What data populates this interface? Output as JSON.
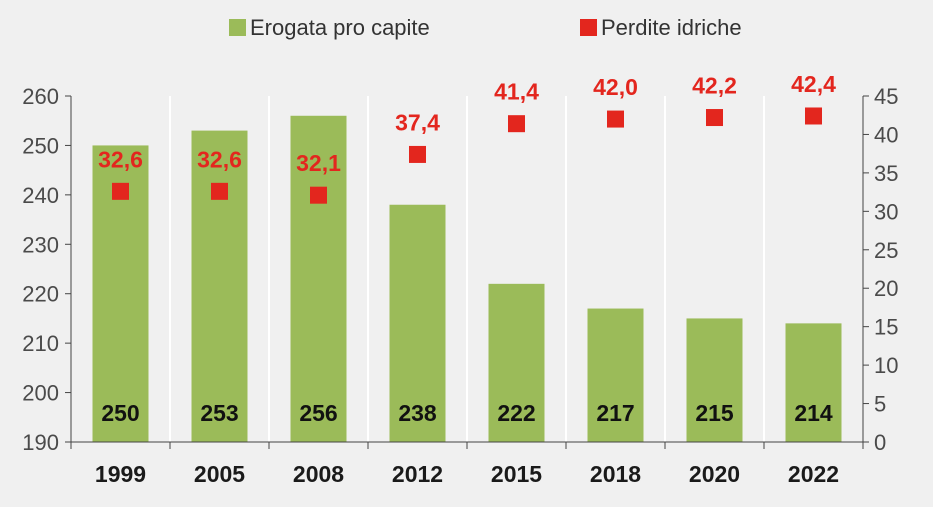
{
  "chart_data": {
    "type": "bar",
    "categories": [
      "1999",
      "2005",
      "2008",
      "2012",
      "2015",
      "2018",
      "2020",
      "2022"
    ],
    "series": [
      {
        "name": "Erogata pro capite",
        "kind": "bar",
        "axis": "left",
        "color": "#9bbb59",
        "values": [
          250,
          253,
          256,
          238,
          222,
          217,
          215,
          214
        ],
        "labels": [
          "250",
          "253",
          "256",
          "238",
          "222",
          "217",
          "215",
          "214"
        ]
      },
      {
        "name": "Perdite idriche",
        "kind": "scatter",
        "marker": "square",
        "axis": "right",
        "color": "#e3261e",
        "values": [
          32.6,
          32.6,
          32.1,
          37.4,
          41.4,
          42.0,
          42.2,
          42.4
        ],
        "labels": [
          "32,6",
          "32,6",
          "32,1",
          "37,4",
          "41,4",
          "42,0",
          "42,2",
          "42,4"
        ]
      }
    ],
    "y_left": {
      "lim": [
        190,
        260
      ],
      "ticks": [
        190,
        200,
        210,
        220,
        230,
        240,
        250,
        260
      ],
      "tick_labels": [
        "190",
        "200",
        "210",
        "220",
        "230",
        "240",
        "250",
        "260"
      ]
    },
    "y_right": {
      "lim": [
        0,
        45
      ],
      "ticks": [
        0,
        5,
        10,
        15,
        20,
        25,
        30,
        35,
        40,
        45
      ],
      "tick_labels": [
        "0",
        "5",
        "10",
        "15",
        "20",
        "25",
        "30",
        "35",
        "40",
        "45"
      ]
    },
    "title": "",
    "xlabel": "",
    "ylabel": "",
    "legend_position": "top-center",
    "grid": "vertical-dividers",
    "colors": {
      "background": "#f0f0f0",
      "grid": "#ffffff",
      "axis": "#444444",
      "point_label": "#e3261e"
    }
  }
}
